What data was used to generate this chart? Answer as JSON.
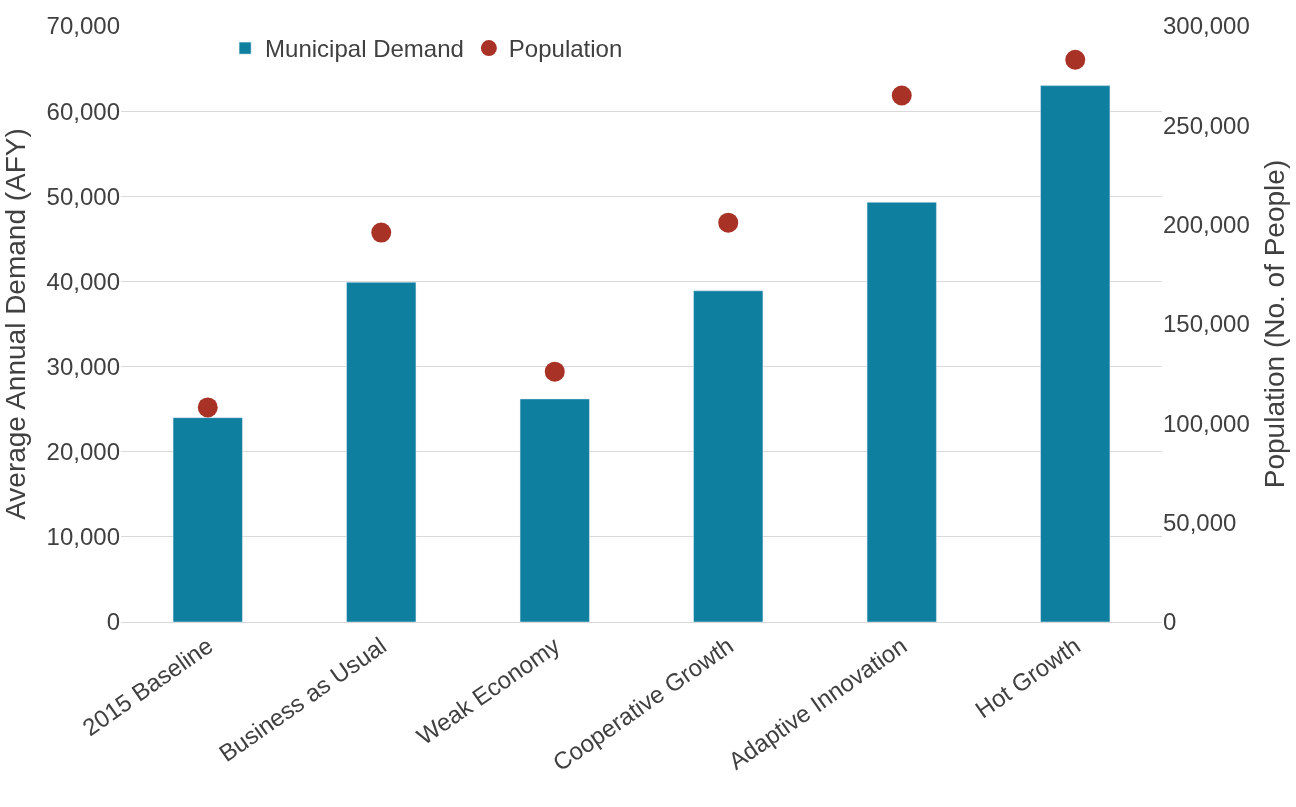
{
  "chart_data": {
    "type": "bar",
    "ylabel": "Average Annual Demand (AFY)",
    "y2label": "Population (No. of People)",
    "categories": [
      "2015 Baseline",
      "Business as Usual",
      "Weak Economy",
      "Cooperative Growth",
      "Adaptive Innovation",
      "Hot Growth"
    ],
    "series": [
      {
        "name": "Municipal Demand",
        "color": "#0f7fa0",
        "values": [
          24000,
          39900,
          26200,
          38900,
          49300,
          63000
        ]
      },
      {
        "name": "Population",
        "type": "scatter",
        "axis": "y2",
        "color": "#a93226",
        "values": [
          108000,
          196000,
          126000,
          201000,
          265000,
          283000
        ]
      }
    ],
    "ylim": [
      0,
      70000
    ],
    "yticks": [
      {
        "value": 0,
        "label": "0"
      },
      {
        "value": 10000,
        "label": "10,000"
      },
      {
        "value": 20000,
        "label": "20,000"
      },
      {
        "value": 30000,
        "label": "30,000"
      },
      {
        "value": 40000,
        "label": "40,000"
      },
      {
        "value": 50000,
        "label": "50,000"
      },
      {
        "value": 60000,
        "label": "60,000"
      },
      {
        "value": 70000,
        "label": "70,000"
      }
    ],
    "y2lim": [
      0,
      300000
    ],
    "y2ticks": [
      {
        "value": 0,
        "label": "0"
      },
      {
        "value": 50000,
        "label": "50,000"
      },
      {
        "value": 100000,
        "label": "100,000"
      },
      {
        "value": 150000,
        "label": "150,000"
      },
      {
        "value": 200000,
        "label": "200,000"
      },
      {
        "value": 250000,
        "label": "250,000"
      },
      {
        "value": 300000,
        "label": "300,000"
      }
    ],
    "grid": "y",
    "legend": "top left",
    "marker": "circle"
  }
}
